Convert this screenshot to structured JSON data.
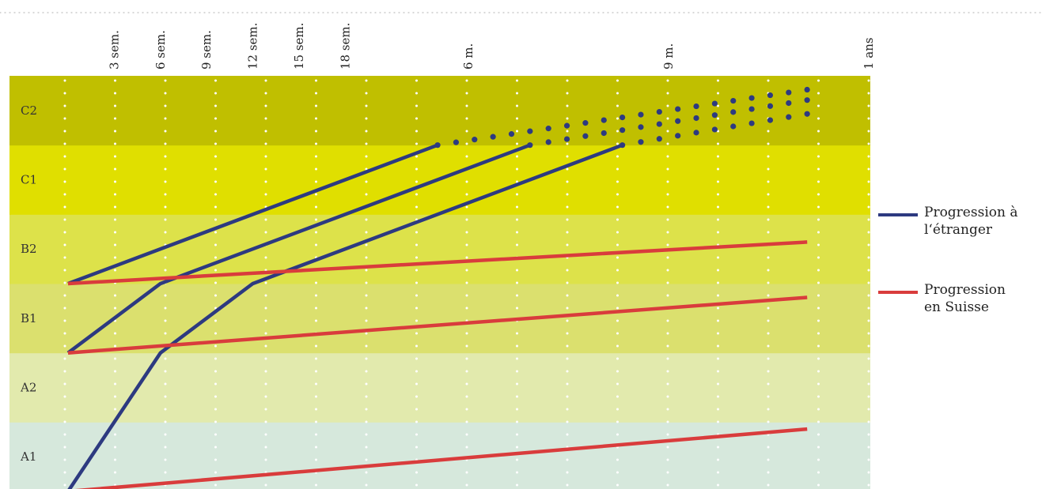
{
  "chart_data": {
    "type": "line",
    "levels": [
      "A1",
      "A2",
      "B1",
      "B2",
      "C1",
      "C2"
    ],
    "level_colors": [
      "#d6e8dc",
      "#e2eaad",
      "#dbe06e",
      "#dde24a",
      "#e0df00",
      "#c0bf00"
    ],
    "x_ticks": [
      {
        "label": "3 sem.",
        "weeks": 3
      },
      {
        "label": "6 sem.",
        "weeks": 6
      },
      {
        "label": "9 sem.",
        "weeks": 9
      },
      {
        "label": "12 sem.",
        "weeks": 12
      },
      {
        "label": "15 sem.",
        "weeks": 15
      },
      {
        "label": "18 sem.",
        "weeks": 18
      },
      {
        "label": "6 m.",
        "weeks": 26
      },
      {
        "label": "9 m.",
        "weeks": 39
      },
      {
        "label": "1 ans",
        "weeks": 52
      }
    ],
    "x_range_weeks": [
      0,
      52
    ],
    "y_range_levels": [
      0,
      6
    ],
    "grid": true,
    "legend_position": "right",
    "series": [
      {
        "name": "Progression à l‘étranger",
        "color": "#2d3a80",
        "paths": [
          {
            "style": "solid",
            "points": [
              [
                0,
                0
              ],
              [
                6,
                2
              ],
              [
                12,
                3
              ],
              [
                36,
                5
              ]
            ]
          },
          {
            "style": "solid",
            "points": [
              [
                0,
                2
              ],
              [
                6,
                3
              ],
              [
                30,
                5
              ]
            ]
          },
          {
            "style": "solid",
            "points": [
              [
                0,
                3
              ],
              [
                24,
                5
              ]
            ]
          },
          {
            "style": "dotted",
            "points": [
              [
                24,
                5
              ],
              [
                48,
                5.8
              ]
            ]
          },
          {
            "style": "dotted",
            "points": [
              [
                30,
                5
              ],
              [
                48,
                5.65
              ]
            ]
          },
          {
            "style": "dotted",
            "points": [
              [
                36,
                5
              ],
              [
                48,
                5.45
              ]
            ]
          }
        ]
      },
      {
        "name": "Progression en Suisse",
        "color": "#d93c3c",
        "paths": [
          {
            "style": "solid",
            "points": [
              [
                0,
                0
              ],
              [
                48,
                0.9
              ]
            ]
          },
          {
            "style": "solid",
            "points": [
              [
                0,
                2
              ],
              [
                48,
                2.8
              ]
            ]
          },
          {
            "style": "solid",
            "points": [
              [
                0,
                3
              ],
              [
                48,
                3.6
              ]
            ]
          }
        ]
      }
    ]
  },
  "legend": {
    "items": [
      {
        "label_line1": "Progression à",
        "label_line2": "l‘étranger",
        "color": "#2d3a80"
      },
      {
        "label_line1": "Progression",
        "label_line2": "en Suisse",
        "color": "#d93c3c"
      }
    ]
  }
}
